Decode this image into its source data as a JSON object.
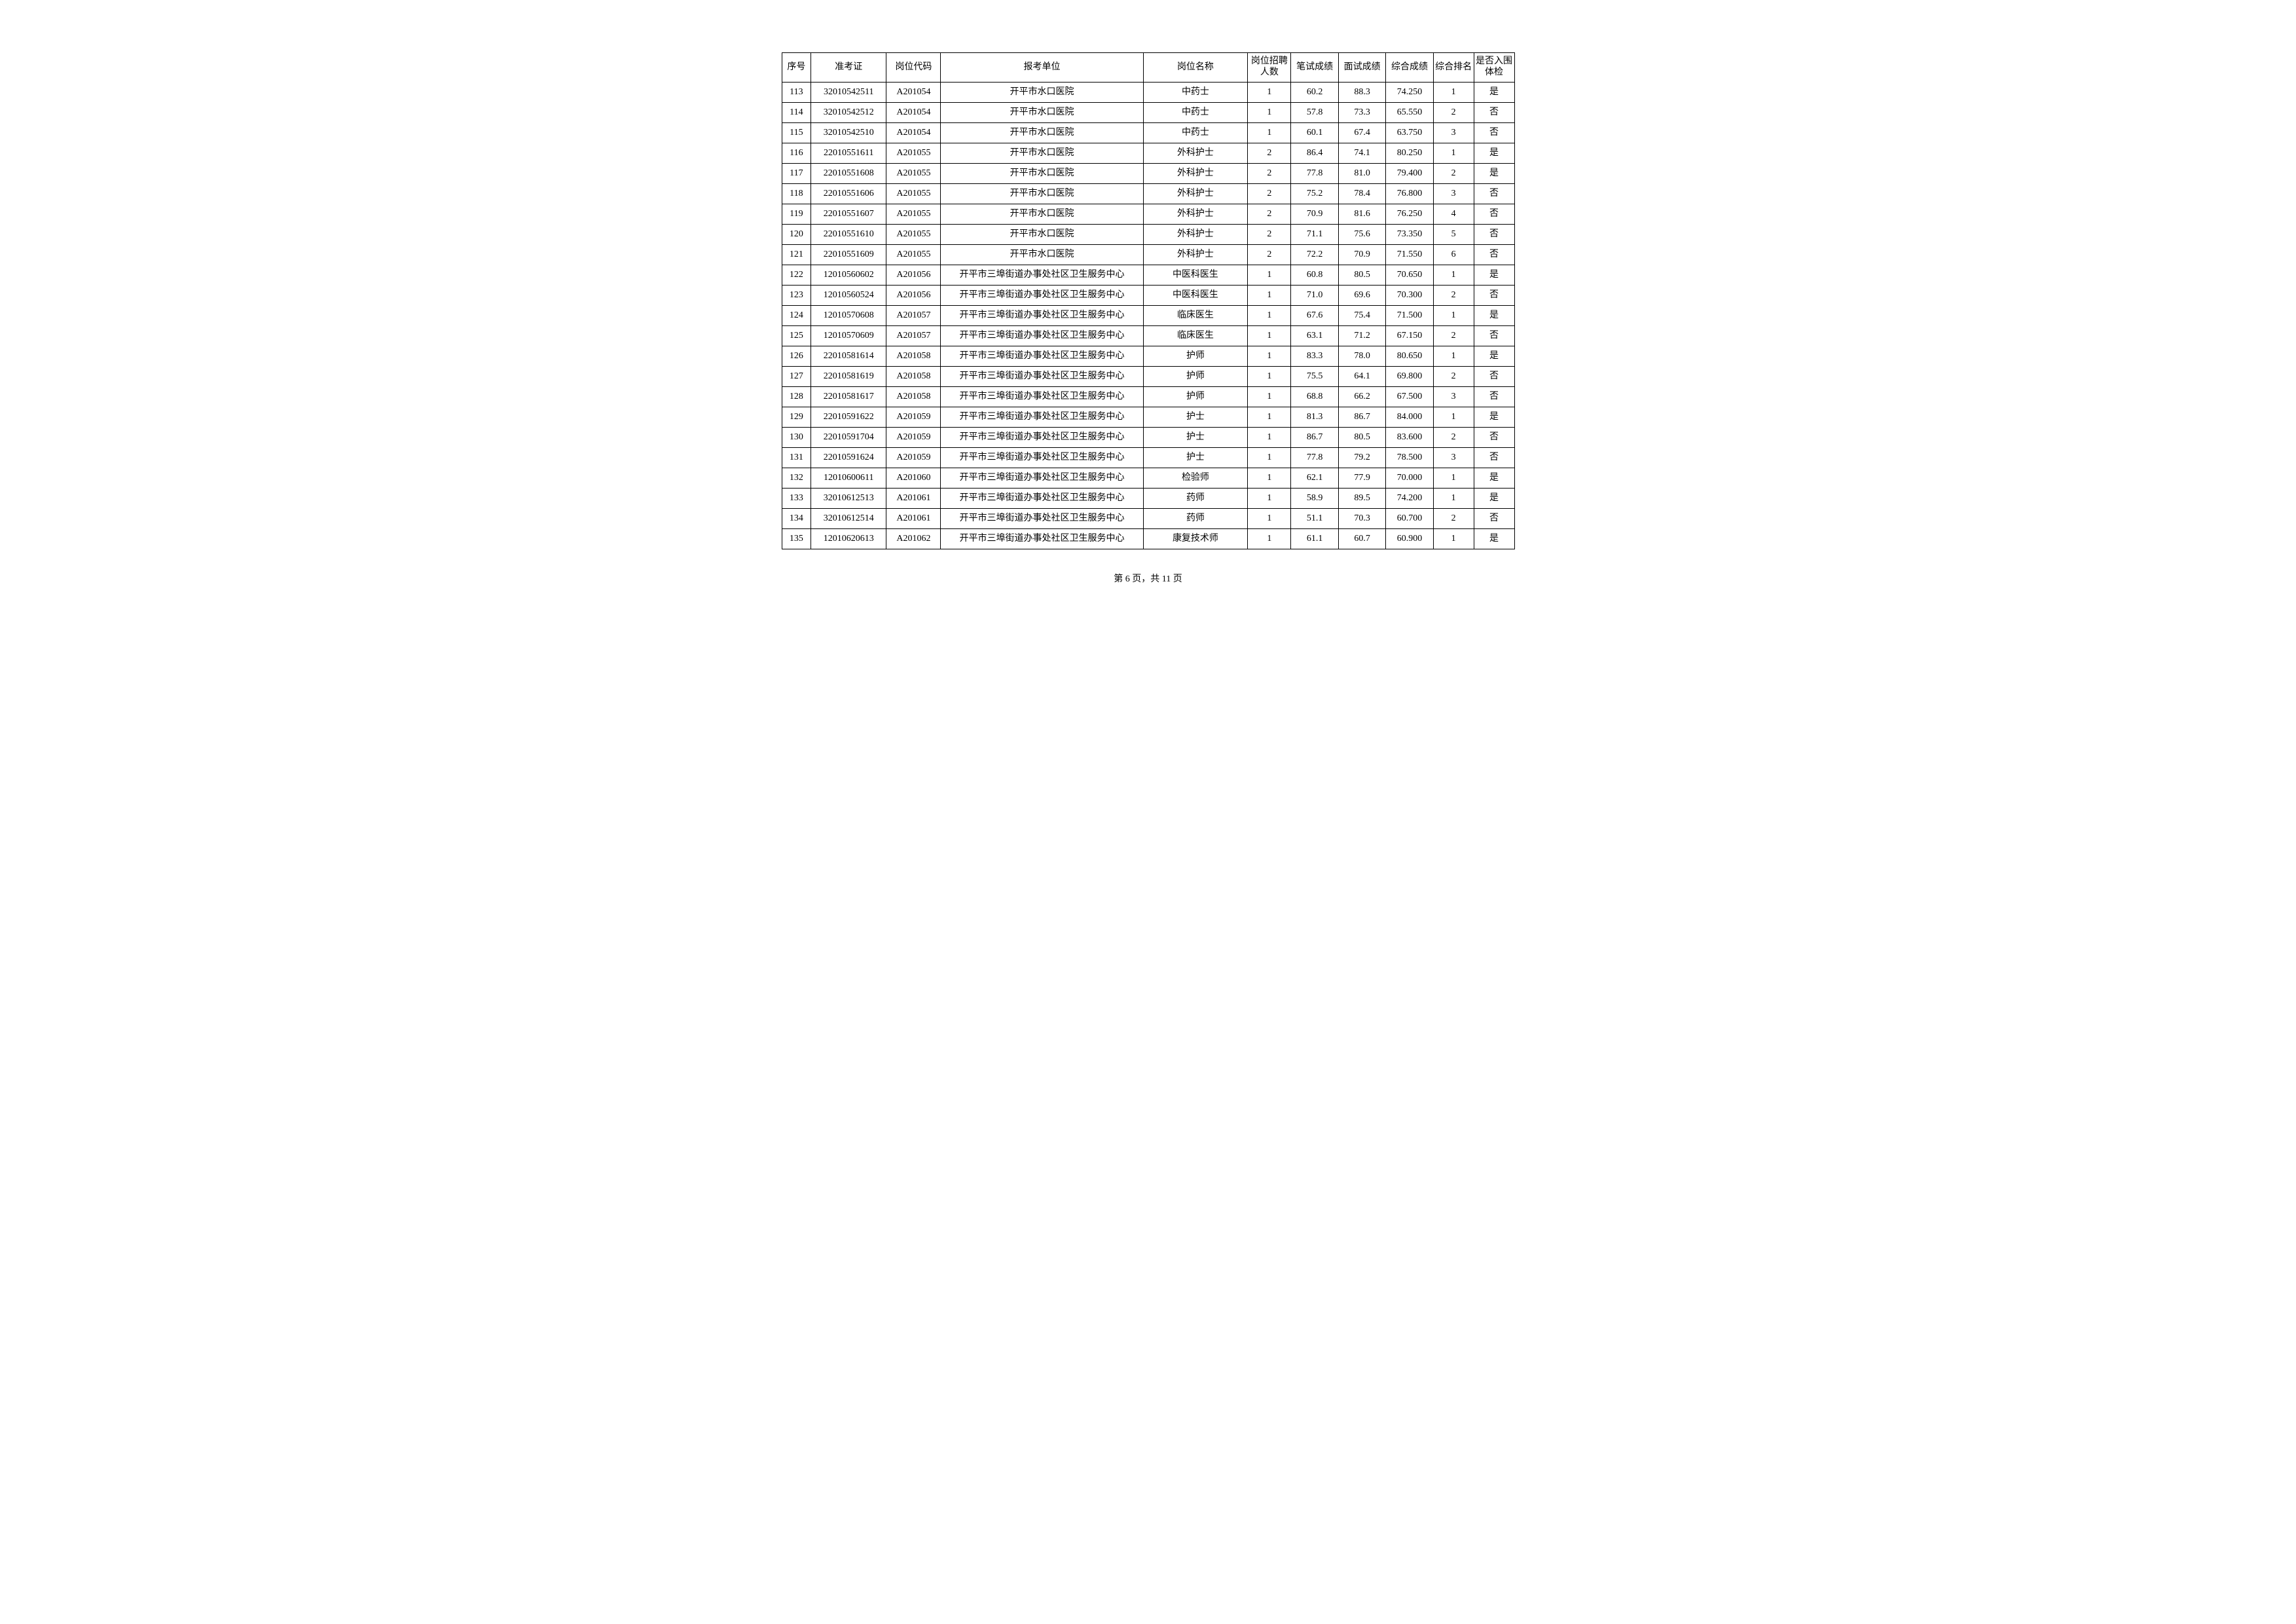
{
  "table": {
    "columns": [
      "序号",
      "准考证",
      "岗位代码",
      "报考单位",
      "岗位名称",
      "岗位招聘\n人数",
      "笔试成绩",
      "面试成绩",
      "综合成绩",
      "综合排名",
      "是否入围\n体检"
    ],
    "rows": [
      [
        "113",
        "32010542511",
        "A201054",
        "开平市水口医院",
        "中药士",
        "1",
        "60.2",
        "88.3",
        "74.250",
        "1",
        "是"
      ],
      [
        "114",
        "32010542512",
        "A201054",
        "开平市水口医院",
        "中药士",
        "1",
        "57.8",
        "73.3",
        "65.550",
        "2",
        "否"
      ],
      [
        "115",
        "32010542510",
        "A201054",
        "开平市水口医院",
        "中药士",
        "1",
        "60.1",
        "67.4",
        "63.750",
        "3",
        "否"
      ],
      [
        "116",
        "22010551611",
        "A201055",
        "开平市水口医院",
        "外科护士",
        "2",
        "86.4",
        "74.1",
        "80.250",
        "1",
        "是"
      ],
      [
        "117",
        "22010551608",
        "A201055",
        "开平市水口医院",
        "外科护士",
        "2",
        "77.8",
        "81.0",
        "79.400",
        "2",
        "是"
      ],
      [
        "118",
        "22010551606",
        "A201055",
        "开平市水口医院",
        "外科护士",
        "2",
        "75.2",
        "78.4",
        "76.800",
        "3",
        "否"
      ],
      [
        "119",
        "22010551607",
        "A201055",
        "开平市水口医院",
        "外科护士",
        "2",
        "70.9",
        "81.6",
        "76.250",
        "4",
        "否"
      ],
      [
        "120",
        "22010551610",
        "A201055",
        "开平市水口医院",
        "外科护士",
        "2",
        "71.1",
        "75.6",
        "73.350",
        "5",
        "否"
      ],
      [
        "121",
        "22010551609",
        "A201055",
        "开平市水口医院",
        "外科护士",
        "2",
        "72.2",
        "70.9",
        "71.550",
        "6",
        "否"
      ],
      [
        "122",
        "12010560602",
        "A201056",
        "开平市三埠街道办事处社区卫生服务中心",
        "中医科医生",
        "1",
        "60.8",
        "80.5",
        "70.650",
        "1",
        "是"
      ],
      [
        "123",
        "12010560524",
        "A201056",
        "开平市三埠街道办事处社区卫生服务中心",
        "中医科医生",
        "1",
        "71.0",
        "69.6",
        "70.300",
        "2",
        "否"
      ],
      [
        "124",
        "12010570608",
        "A201057",
        "开平市三埠街道办事处社区卫生服务中心",
        "临床医生",
        "1",
        "67.6",
        "75.4",
        "71.500",
        "1",
        "是"
      ],
      [
        "125",
        "12010570609",
        "A201057",
        "开平市三埠街道办事处社区卫生服务中心",
        "临床医生",
        "1",
        "63.1",
        "71.2",
        "67.150",
        "2",
        "否"
      ],
      [
        "126",
        "22010581614",
        "A201058",
        "开平市三埠街道办事处社区卫生服务中心",
        "护师",
        "1",
        "83.3",
        "78.0",
        "80.650",
        "1",
        "是"
      ],
      [
        "127",
        "22010581619",
        "A201058",
        "开平市三埠街道办事处社区卫生服务中心",
        "护师",
        "1",
        "75.5",
        "64.1",
        "69.800",
        "2",
        "否"
      ],
      [
        "128",
        "22010581617",
        "A201058",
        "开平市三埠街道办事处社区卫生服务中心",
        "护师",
        "1",
        "68.8",
        "66.2",
        "67.500",
        "3",
        "否"
      ],
      [
        "129",
        "22010591622",
        "A201059",
        "开平市三埠街道办事处社区卫生服务中心",
        "护士",
        "1",
        "81.3",
        "86.7",
        "84.000",
        "1",
        "是"
      ],
      [
        "130",
        "22010591704",
        "A201059",
        "开平市三埠街道办事处社区卫生服务中心",
        "护士",
        "1",
        "86.7",
        "80.5",
        "83.600",
        "2",
        "否"
      ],
      [
        "131",
        "22010591624",
        "A201059",
        "开平市三埠街道办事处社区卫生服务中心",
        "护士",
        "1",
        "77.8",
        "79.2",
        "78.500",
        "3",
        "否"
      ],
      [
        "132",
        "12010600611",
        "A201060",
        "开平市三埠街道办事处社区卫生服务中心",
        "检验师",
        "1",
        "62.1",
        "77.9",
        "70.000",
        "1",
        "是"
      ],
      [
        "133",
        "32010612513",
        "A201061",
        "开平市三埠街道办事处社区卫生服务中心",
        "药师",
        "1",
        "58.9",
        "89.5",
        "74.200",
        "1",
        "是"
      ],
      [
        "134",
        "32010612514",
        "A201061",
        "开平市三埠街道办事处社区卫生服务中心",
        "药师",
        "1",
        "51.1",
        "70.3",
        "60.700",
        "2",
        "否"
      ],
      [
        "135",
        "12010620613",
        "A201062",
        "开平市三埠街道办事处社区卫生服务中心",
        "康复技术师",
        "1",
        "61.1",
        "60.7",
        "60.900",
        "1",
        "是"
      ]
    ]
  },
  "footer": "第 6 页，共 11 页"
}
